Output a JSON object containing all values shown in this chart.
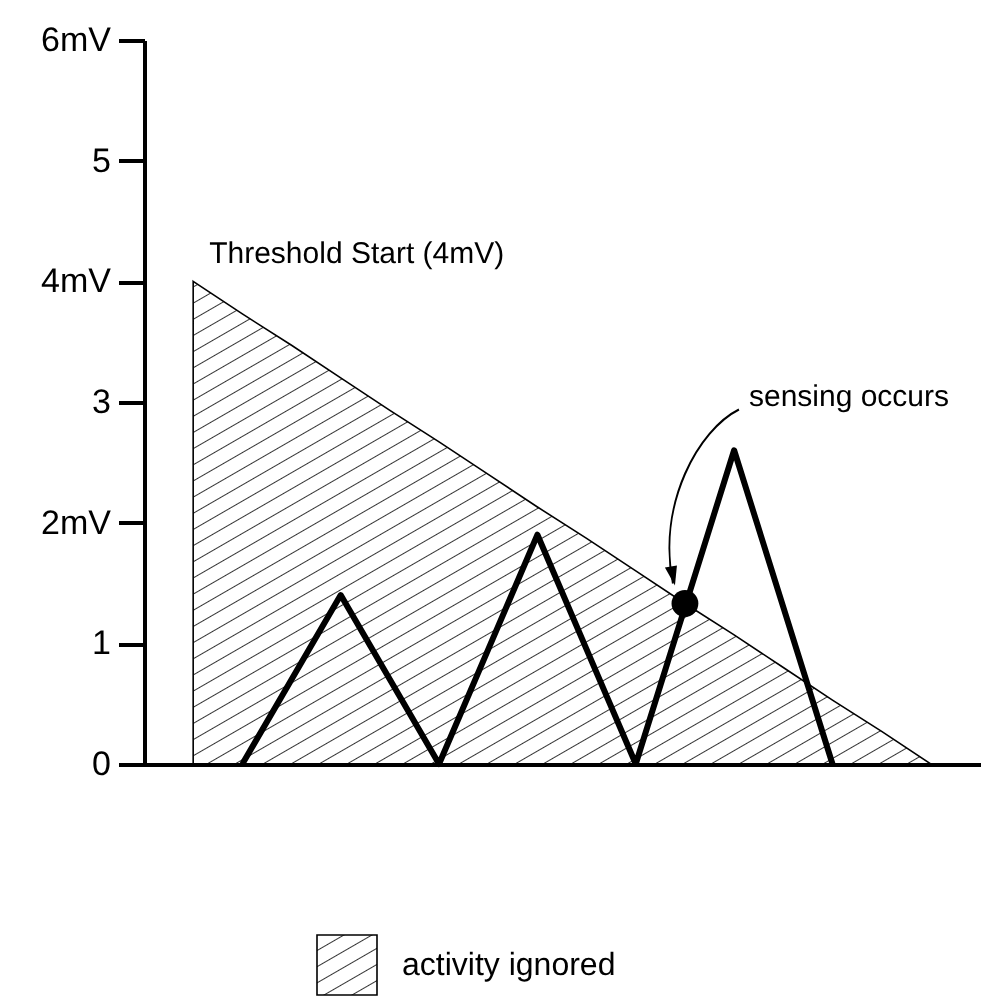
{
  "chart_data": {
    "type": "line",
    "categories": [
      null,
      null,
      null,
      null,
      null,
      null,
      null,
      null,
      null,
      null,
      null,
      null,
      null,
      null,
      null,
      null
    ],
    "ylim": [
      0,
      6
    ],
    "yticks": [
      0,
      1,
      {
        "value": 2,
        "label": "2mV"
      },
      3,
      {
        "value": 4,
        "label": "4mV"
      },
      5,
      {
        "value": 6,
        "label": "6mV"
      }
    ],
    "tick_labels": "y",
    "grid": false,
    "legend": "bottom",
    "series": [
      {
        "name": "activity ignored",
        "type": "area",
        "color": "#000000",
        "values": [
          4,
          3.73,
          3.47,
          3.2,
          2.93,
          2.67,
          2.4,
          2.13,
          1.87,
          1.6,
          1.33,
          1.07,
          0.8,
          0.53,
          0.27,
          0
        ]
      },
      {
        "color": "#000000",
        "values": [
          null,
          0,
          0.7,
          1.4,
          0.7,
          0,
          0.95,
          1.9,
          0.95,
          0,
          1.3,
          2.6,
          1.3,
          0,
          null,
          null
        ]
      },
      {
        "type": "scatter",
        "color": "#000000",
        "marker": "circle",
        "values": [
          null,
          null,
          null,
          null,
          null,
          null,
          null,
          null,
          null,
          null,
          1.33,
          null,
          null,
          null,
          null,
          null
        ]
      }
    ],
    "annotations": [
      "Threshold Start (4mV)",
      "sensing occurs"
    ]
  }
}
